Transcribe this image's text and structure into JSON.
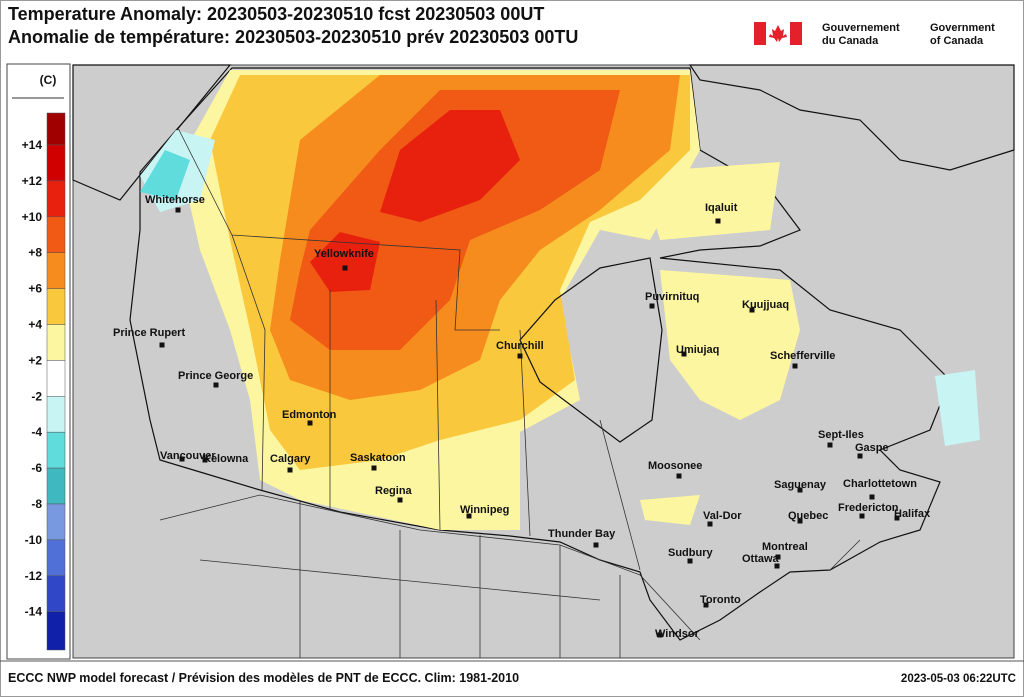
{
  "header": {
    "title_en": "Temperature Anomaly: 20230503-20230510 fcst 20230503 00UT",
    "title_fr": "Anomalie de température: 20230503-20230510 prév 20230503 00TU",
    "gov_fr": [
      "Gouvernement",
      "du Canada"
    ],
    "gov_en": [
      "Government",
      "of Canada"
    ]
  },
  "legend": {
    "unit": "(C)",
    "labels": [
      "+14",
      "+12",
      "+10",
      "+8",
      "+6",
      "+4",
      "+2",
      "-2",
      "-4",
      "-6",
      "-8",
      "-10",
      "-12",
      "-14"
    ],
    "colors": [
      "#a00000",
      "#d00000",
      "#e8200e",
      "#f05a14",
      "#f68c1e",
      "#fac83c",
      "#fcf6a0",
      "#ffffff",
      "#c8f4f4",
      "#60dcdc",
      "#40b8c0",
      "#7898e0",
      "#5070d8",
      "#3048c8",
      "#1020a8"
    ]
  },
  "cities": [
    "Whitehorse",
    "Yellowknife",
    "Prince Rupert",
    "Prince George",
    "Edmonton",
    "Calgary",
    "Kelowna",
    "Vancouver",
    "Saskatoon",
    "Regina",
    "Winnipeg",
    "Churchill",
    "Thunder Bay",
    "Moosonee",
    "Sudbury",
    "Toronto",
    "Windsor",
    "Ottawa",
    "Montreal",
    "Val-Dor",
    "Quebec",
    "Saguenay",
    "Fredericton",
    "Halifax",
    "Charlottetown",
    "Gaspe",
    "Sept-Iles",
    "Schefferville",
    "Kuujjuaq",
    "Umiujaq",
    "Puvirnituq",
    "Iqaluit"
  ],
  "footer": {
    "source": "ECCC NWP model forecast / Prévision des modèles de PNT de ECCC. Clim: 1981-2010",
    "timestamp": "2023-05-03 06:22UTC"
  }
}
